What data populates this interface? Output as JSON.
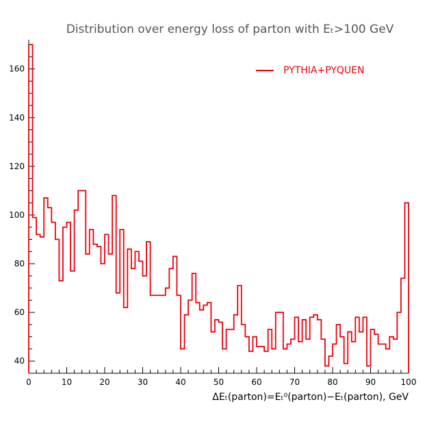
{
  "chart_data": {
    "type": "line",
    "title": "Distribution over energy loss of parton with Eₜ>100 GeV",
    "xlabel": "ΔEₜ(parton)=Eₜ⁰(parton)−Eₜ(parton), GeV",
    "ylabel": "",
    "xlim": [
      0,
      100
    ],
    "ylim": [
      35,
      172
    ],
    "x_ticks": [
      0,
      10,
      20,
      30,
      40,
      50,
      60,
      70,
      80,
      90,
      100
    ],
    "y_ticks": [
      40,
      60,
      80,
      100,
      120,
      140,
      160
    ],
    "grid": false,
    "legend_position": "top-right",
    "series": [
      {
        "name": "PYTHIA+PYQUEN",
        "color": "#e8000b",
        "bin_width": 1,
        "x": [
          0,
          1,
          2,
          3,
          4,
          5,
          6,
          7,
          8,
          9,
          10,
          11,
          12,
          13,
          14,
          15,
          16,
          17,
          18,
          19,
          20,
          21,
          22,
          23,
          24,
          25,
          26,
          27,
          28,
          29,
          30,
          31,
          32,
          33,
          34,
          35,
          36,
          37,
          38,
          39,
          40,
          41,
          42,
          43,
          44,
          45,
          46,
          47,
          48,
          49,
          50,
          51,
          52,
          53,
          54,
          55,
          56,
          57,
          58,
          59,
          60,
          61,
          62,
          63,
          64,
          65,
          66,
          67,
          68,
          69,
          70,
          71,
          72,
          73,
          74,
          75,
          76,
          77,
          78,
          79,
          80,
          81,
          82,
          83,
          84,
          85,
          86,
          87,
          88,
          89,
          90,
          91,
          92,
          93,
          94,
          95,
          96,
          97,
          98,
          99
        ],
        "values": [
          170,
          99,
          92,
          91,
          107,
          103,
          97,
          90,
          73,
          95,
          97,
          77,
          102,
          110,
          110,
          84,
          94,
          88,
          87,
          80,
          92,
          84,
          108,
          68,
          94,
          62,
          86,
          78,
          85,
          81,
          75,
          89,
          67,
          67,
          67,
          67,
          70,
          78,
          83,
          67,
          45,
          59,
          65,
          76,
          64,
          61,
          63,
          64,
          52,
          57,
          56,
          45,
          53,
          53,
          59,
          71,
          55,
          50,
          44,
          50,
          46,
          46,
          44,
          53,
          45,
          60,
          60,
          45,
          47,
          49,
          58,
          48,
          57,
          49,
          58,
          59,
          57,
          49,
          38,
          42,
          47,
          55,
          50,
          39,
          52,
          48,
          58,
          52,
          58,
          38,
          53,
          51,
          47,
          47,
          45,
          50,
          49,
          60,
          74,
          105
        ]
      }
    ]
  }
}
